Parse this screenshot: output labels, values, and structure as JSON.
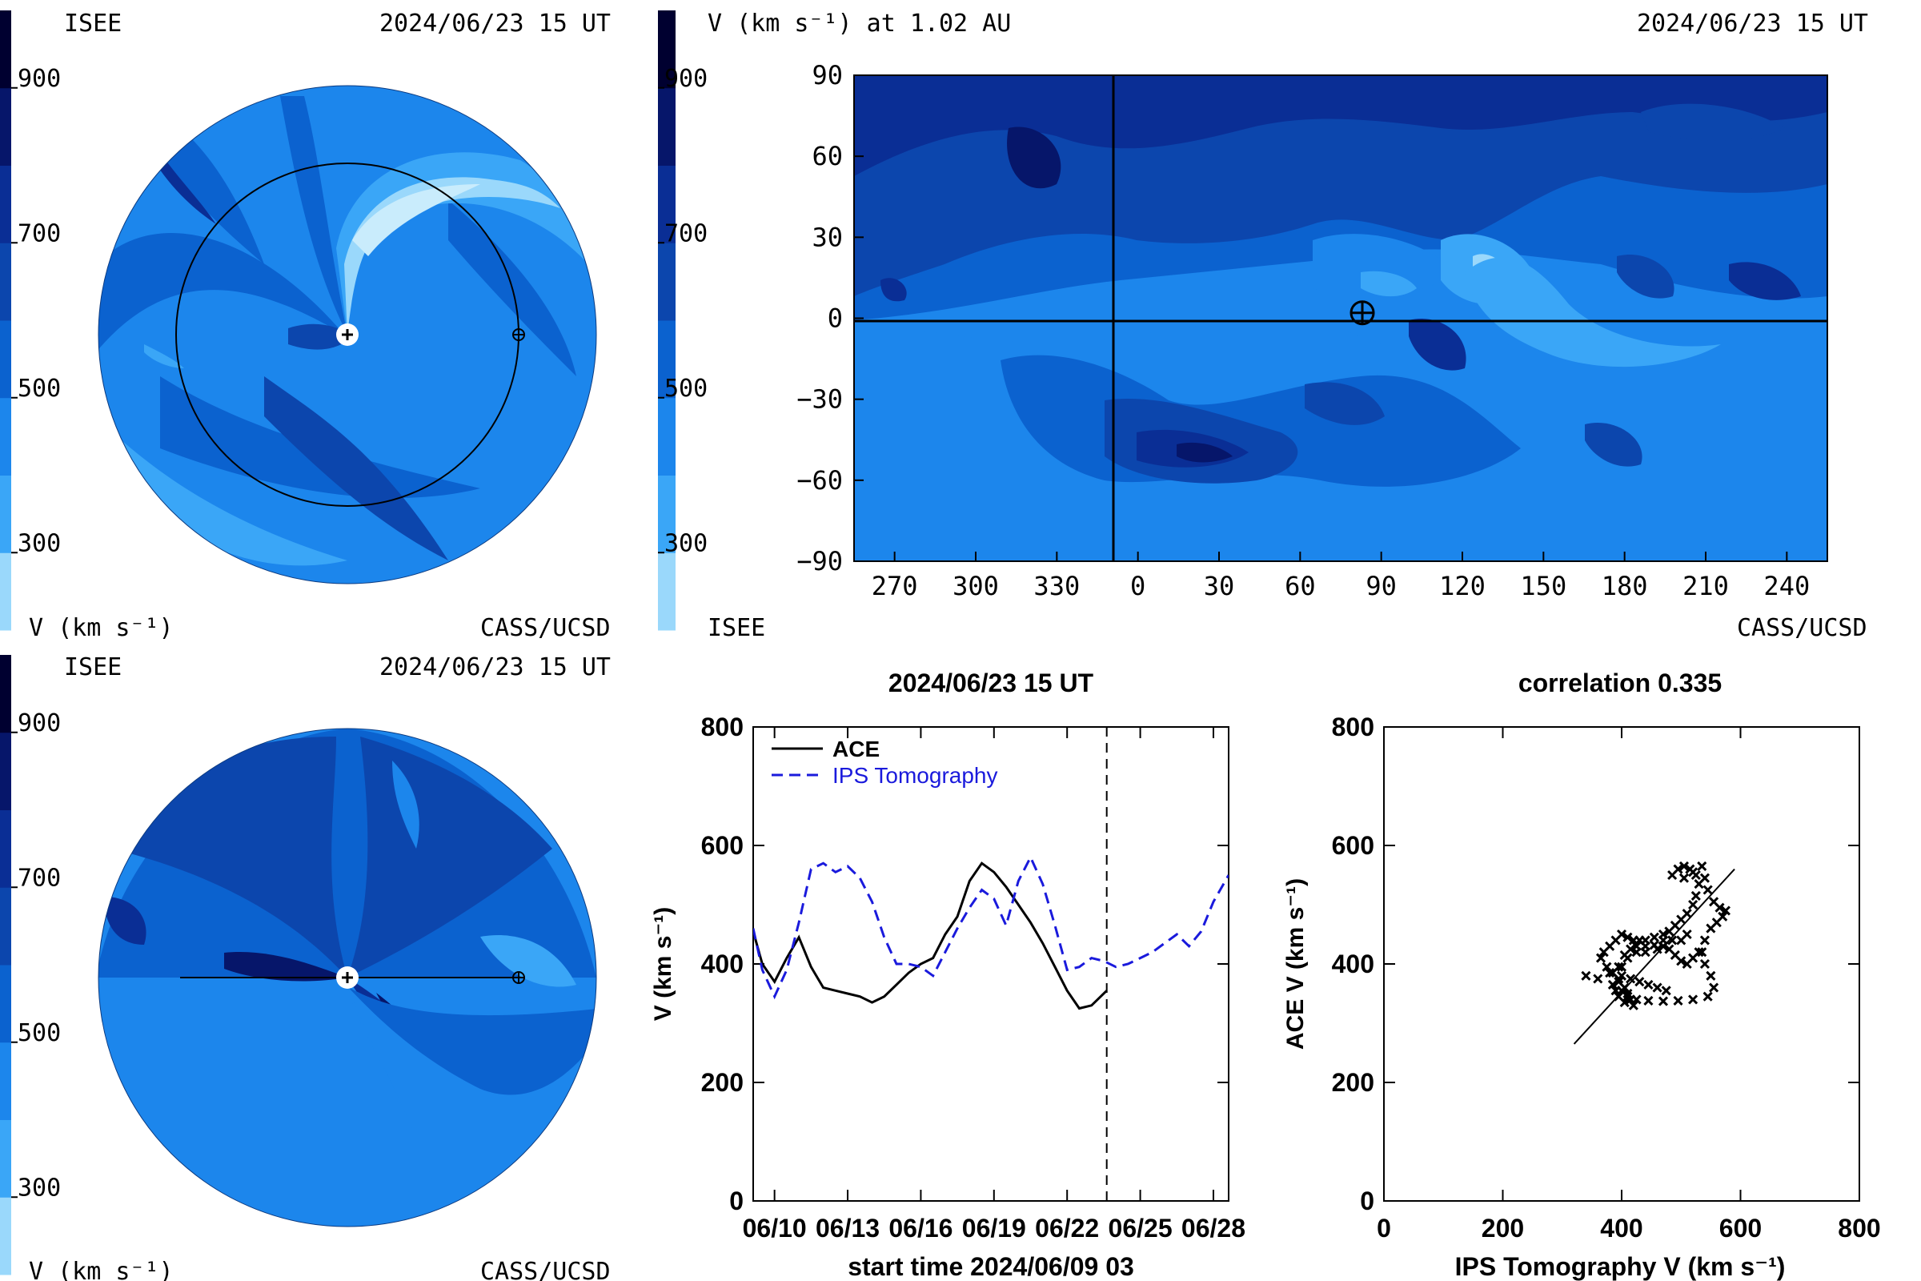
{
  "colorbar": {
    "ticks": [
      "900",
      "700",
      "500",
      "300"
    ],
    "tick_values": [
      900,
      700,
      500,
      300
    ],
    "range": [
      200,
      1000
    ],
    "colors": [
      "#9ad8fb",
      "#3aa6f7",
      "#1c86ec",
      "#0b62cf",
      "#0c46ad",
      "#0a2e95",
      "#06166a",
      "#000030"
    ],
    "units_label": "V (km s⁻¹)"
  },
  "panel_ecliptic": {
    "left_label": "ISEE",
    "date": "2024/06/23 15 UT",
    "bottom_right": "CASS/UCSD",
    "units_label": "V (km s⁻¹)"
  },
  "panel_map": {
    "title": "V (km s⁻¹) at 1.02 AU",
    "date": "2024/06/23 15 UT",
    "bottom_left": "ISEE",
    "bottom_right": "CASS/UCSD",
    "x_ticks": [
      "270",
      "300",
      "330",
      "0",
      "30",
      "60",
      "90",
      "120",
      "150",
      "180",
      "210",
      "240"
    ],
    "y_ticks": [
      "90",
      "60",
      "30",
      "0",
      "−30",
      "−60",
      "−90"
    ],
    "earth_position": {
      "lon": 83,
      "lat": 2
    }
  },
  "panel_meridional": {
    "left_label": "ISEE",
    "date": "2024/06/23 15 UT",
    "bottom_right": "CASS/UCSD",
    "units_label": "V (km s⁻¹)"
  },
  "panel_timeseries": {
    "title": "2024/06/23 15 UT",
    "ylabel": "V (km s⁻¹)",
    "xlabel": "start time 2024/06/09 03",
    "x_ticks": [
      "06/10",
      "06/13",
      "06/16",
      "06/19",
      "06/22",
      "06/25",
      "06/28"
    ],
    "y_ticks": [
      "0",
      "200",
      "400",
      "600",
      "800"
    ],
    "legend": [
      {
        "name": "ACE",
        "style": "solid",
        "color": "#000000"
      },
      {
        "name": "IPS Tomography",
        "style": "dashed",
        "color": "#1a1adc"
      }
    ]
  },
  "panel_scatter": {
    "title": "correlation 0.335",
    "xlabel": "IPS Tomography V (km s⁻¹)",
    "ylabel": "ACE V (km s⁻¹)",
    "x_ticks": [
      "0",
      "200",
      "400",
      "600",
      "800"
    ],
    "y_ticks": [
      "0",
      "200",
      "400",
      "600",
      "800"
    ]
  },
  "chart_data": [
    {
      "type": "line",
      "title": "2024/06/23 15 UT",
      "xlabel": "start time 2024/06/09 03",
      "ylabel": "V (km s⁻¹)",
      "xlim": [
        "2024-06-09 03",
        "2024-06-28 15"
      ],
      "ylim": [
        0,
        800
      ],
      "current_time": "2024-06-23 15",
      "series": [
        {
          "name": "ACE",
          "style": "solid",
          "color": "#000000",
          "x": [
            "2024-06-09 03",
            "2024-06-09 12",
            "2024-06-10 00",
            "2024-06-10 12",
            "2024-06-11 00",
            "2024-06-11 12",
            "2024-06-12 00",
            "2024-06-12 12",
            "2024-06-13 00",
            "2024-06-13 12",
            "2024-06-14 00",
            "2024-06-14 12",
            "2024-06-15 00",
            "2024-06-15 12",
            "2024-06-16 00",
            "2024-06-16 12",
            "2024-06-17 00",
            "2024-06-17 12",
            "2024-06-18 00",
            "2024-06-18 12",
            "2024-06-19 00",
            "2024-06-19 12",
            "2024-06-20 00",
            "2024-06-20 12",
            "2024-06-21 00",
            "2024-06-21 12",
            "2024-06-22 00",
            "2024-06-22 12",
            "2024-06-23 00",
            "2024-06-23 15"
          ],
          "y": [
            455,
            400,
            370,
            410,
            445,
            395,
            360,
            355,
            350,
            345,
            335,
            345,
            365,
            385,
            400,
            410,
            450,
            480,
            540,
            570,
            555,
            530,
            500,
            470,
            435,
            395,
            355,
            325,
            330,
            355
          ]
        },
        {
          "name": "IPS Tomography",
          "style": "dashed",
          "color": "#1a1adc",
          "x": [
            "2024-06-09 03",
            "2024-06-09 12",
            "2024-06-10 00",
            "2024-06-10 12",
            "2024-06-11 00",
            "2024-06-11 12",
            "2024-06-12 00",
            "2024-06-12 12",
            "2024-06-13 00",
            "2024-06-13 12",
            "2024-06-14 00",
            "2024-06-14 12",
            "2024-06-15 00",
            "2024-06-15 12",
            "2024-06-16 00",
            "2024-06-16 12",
            "2024-06-17 00",
            "2024-06-17 12",
            "2024-06-18 00",
            "2024-06-18 12",
            "2024-06-19 00",
            "2024-06-19 12",
            "2024-06-20 00",
            "2024-06-20 12",
            "2024-06-21 00",
            "2024-06-21 12",
            "2024-06-22 00",
            "2024-06-22 12",
            "2024-06-23 00",
            "2024-06-23 12",
            "2024-06-24 00",
            "2024-06-24 12",
            "2024-06-25 00",
            "2024-06-25 12",
            "2024-06-26 00",
            "2024-06-26 12",
            "2024-06-27 00",
            "2024-06-27 12",
            "2024-06-28 00",
            "2024-06-28 15"
          ],
          "y": [
            460,
            390,
            345,
            390,
            470,
            560,
            570,
            555,
            565,
            545,
            505,
            445,
            400,
            400,
            395,
            380,
            420,
            460,
            495,
            525,
            510,
            465,
            540,
            580,
            535,
            465,
            390,
            395,
            410,
            405,
            395,
            400,
            410,
            420,
            435,
            450,
            430,
            455,
            505,
            550
          ]
        }
      ]
    },
    {
      "type": "scatter",
      "title": "correlation 0.335",
      "xlabel": "IPS Tomography V (km s⁻¹)",
      "ylabel": "ACE V (km s⁻¹)",
      "xlim": [
        0,
        800
      ],
      "ylim": [
        0,
        800
      ],
      "fit_line": {
        "x": [
          320,
          590
        ],
        "y": [
          265,
          560
        ]
      },
      "points": [
        [
          340,
          380
        ],
        [
          360,
          375
        ],
        [
          380,
          385
        ],
        [
          395,
          370
        ],
        [
          405,
          360
        ],
        [
          410,
          350
        ],
        [
          415,
          340
        ],
        [
          420,
          330
        ],
        [
          405,
          335
        ],
        [
          395,
          345
        ],
        [
          390,
          355
        ],
        [
          385,
          365
        ],
        [
          395,
          395
        ],
        [
          405,
          415
        ],
        [
          415,
          425
        ],
        [
          425,
          430
        ],
        [
          440,
          440
        ],
        [
          455,
          445
        ],
        [
          470,
          450
        ],
        [
          480,
          455
        ],
        [
          490,
          465
        ],
        [
          500,
          475
        ],
        [
          510,
          485
        ],
        [
          520,
          500
        ],
        [
          525,
          515
        ],
        [
          530,
          535
        ],
        [
          525,
          550
        ],
        [
          515,
          560
        ],
        [
          505,
          565
        ],
        [
          495,
          560
        ],
        [
          485,
          550
        ],
        [
          505,
          545
        ],
        [
          520,
          555
        ],
        [
          535,
          565
        ],
        [
          540,
          545
        ],
        [
          545,
          525
        ],
        [
          555,
          505
        ],
        [
          565,
          495
        ],
        [
          575,
          490
        ],
        [
          570,
          480
        ],
        [
          560,
          470
        ],
        [
          550,
          460
        ],
        [
          540,
          440
        ],
        [
          535,
          420
        ],
        [
          540,
          400
        ],
        [
          550,
          380
        ],
        [
          555,
          360
        ],
        [
          545,
          345
        ],
        [
          520,
          340
        ],
        [
          495,
          338
        ],
        [
          470,
          337
        ],
        [
          445,
          338
        ],
        [
          425,
          340
        ],
        [
          410,
          345
        ],
        [
          400,
          355
        ],
        [
          395,
          375
        ],
        [
          400,
          395
        ],
        [
          410,
          410
        ],
        [
          425,
          420
        ],
        [
          440,
          420
        ],
        [
          460,
          425
        ],
        [
          470,
          430
        ],
        [
          480,
          425
        ],
        [
          490,
          415
        ],
        [
          500,
          405
        ],
        [
          510,
          400
        ],
        [
          520,
          410
        ],
        [
          530,
          420
        ],
        [
          510,
          450
        ],
        [
          500,
          440
        ],
        [
          485,
          440
        ],
        [
          470,
          440
        ],
        [
          455,
          432
        ],
        [
          440,
          430
        ],
        [
          430,
          440
        ],
        [
          420,
          440
        ],
        [
          410,
          445
        ],
        [
          400,
          450
        ],
        [
          390,
          440
        ],
        [
          380,
          430
        ],
        [
          370,
          420
        ],
        [
          365,
          410
        ],
        [
          375,
          395
        ],
        [
          385,
          385
        ],
        [
          400,
          380
        ],
        [
          415,
          375
        ],
        [
          430,
          370
        ],
        [
          445,
          365
        ],
        [
          460,
          360
        ],
        [
          475,
          355
        ]
      ]
    }
  ]
}
